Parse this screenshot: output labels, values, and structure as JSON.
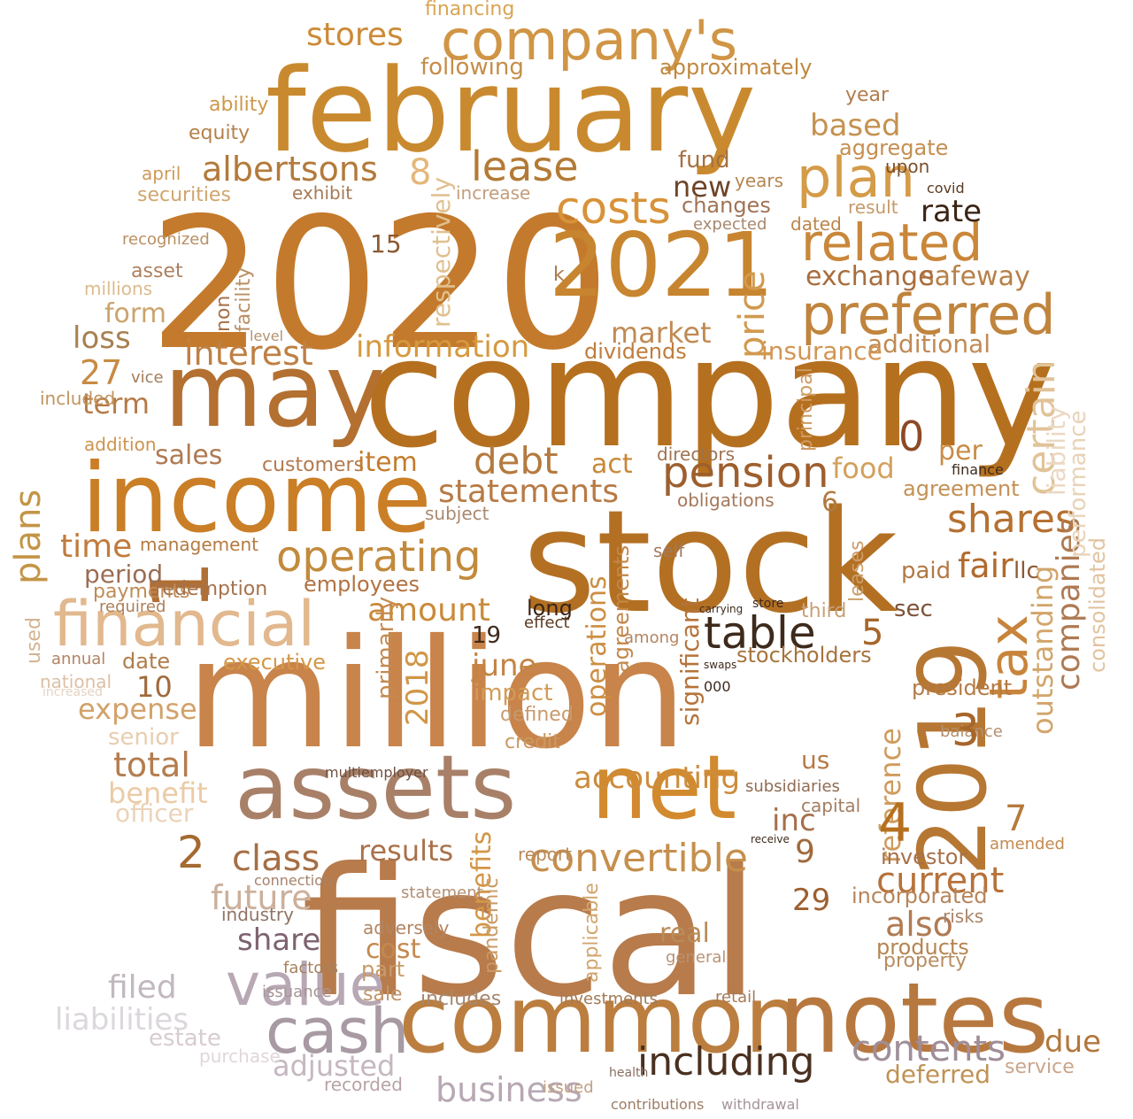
{
  "words": [
    {
      "t": "2020",
      "c": "#c47a2c"
    },
    {
      "t": "company",
      "c": "#b5701f"
    },
    {
      "t": "million",
      "c": "#c8844a"
    },
    {
      "t": "fiscal",
      "c": "#b87b4b"
    },
    {
      "t": "stock",
      "c": "#b37023"
    },
    {
      "t": "february",
      "c": "#c98a2f"
    },
    {
      "t": "income",
      "c": "#ca7e26"
    },
    {
      "t": "may",
      "c": "#b37030"
    },
    {
      "t": "common",
      "c": "#bb7e3f"
    },
    {
      "t": "notes",
      "c": "#b7783f"
    },
    {
      "t": "assets",
      "c": "#a88068"
    },
    {
      "t": "net",
      "c": "#d28a2e"
    },
    {
      "t": "2019",
      "c": "#b67733"
    },
    {
      "t": "2021",
      "c": "#c7852f"
    },
    {
      "t": "1",
      "c": "#b06f35"
    },
    {
      "t": "company's",
      "c": "#d09545"
    },
    {
      "t": "financial",
      "c": "#e2b88e"
    },
    {
      "t": "cash",
      "c": "#a89aa3"
    },
    {
      "t": "value",
      "c": "#b7a8b4"
    },
    {
      "t": "preferred",
      "c": "#c0843d"
    },
    {
      "t": "related",
      "c": "#c9873a"
    },
    {
      "t": "plan",
      "c": "#d49b48"
    },
    {
      "t": "operating",
      "c": "#c28a3c"
    },
    {
      "t": "table",
      "c": "#3e2a1c"
    },
    {
      "t": "pension",
      "c": "#9e5f2e"
    },
    {
      "t": "costs",
      "c": "#d89238"
    },
    {
      "t": "lease",
      "c": "#b37a36"
    },
    {
      "t": "albertsons",
      "c": "#b37a3b"
    },
    {
      "t": "stores",
      "c": "#cc8a36"
    },
    {
      "t": "tax",
      "c": "#c8843b"
    },
    {
      "t": "including",
      "c": "#4a3020"
    },
    {
      "t": "contents",
      "c": "#9f8e98"
    },
    {
      "t": "convertible",
      "c": "#c58f4d"
    },
    {
      "t": "shares",
      "c": "#b57131"
    },
    {
      "t": "debt",
      "c": "#b47a3e"
    },
    {
      "t": "statements",
      "c": "#b87a44"
    },
    {
      "t": "interest",
      "c": "#be8043"
    },
    {
      "t": "information",
      "c": "#d5993f"
    },
    {
      "t": "class",
      "c": "#a56f45"
    },
    {
      "t": "future",
      "c": "#ccb09b"
    },
    {
      "t": "share",
      "c": "#7d6270"
    },
    {
      "t": "filed",
      "c": "#c1b8c0"
    },
    {
      "t": "liabilities",
      "c": "#dcd7dc"
    },
    {
      "t": "business",
      "c": "#b7a8b4"
    },
    {
      "t": "adjusted",
      "c": "#c5b7c0"
    },
    {
      "t": "current",
      "c": "#b6723b"
    },
    {
      "t": "accounting",
      "c": "#cc8c3c"
    },
    {
      "t": "amount",
      "c": "#ca8a39"
    },
    {
      "t": "certain",
      "c": "#e1c398"
    },
    {
      "t": "outstanding",
      "c": "#d2a56a"
    },
    {
      "t": "companies",
      "c": "#ae7a53"
    },
    {
      "t": "reference",
      "c": "#cf9b5c"
    },
    {
      "t": "benefits",
      "c": "#d39646"
    },
    {
      "t": "operations",
      "c": "#cc8e43"
    },
    {
      "t": "2018",
      "c": "#d09648"
    },
    {
      "t": "price",
      "c": "#d19a4f"
    },
    {
      "t": "plans",
      "c": "#c39546"
    },
    {
      "t": "time",
      "c": "#c07b3c"
    },
    {
      "t": "total",
      "c": "#b47d4f"
    },
    {
      "t": "expense",
      "c": "#d2a26a"
    },
    {
      "t": "benefit",
      "c": "#ebcba6"
    },
    {
      "t": "officer",
      "c": "#ebd3b8"
    },
    {
      "t": "senior",
      "c": "#e8cdb0"
    },
    {
      "t": "results",
      "c": "#a9714a"
    },
    {
      "t": "also",
      "c": "#b07a52"
    },
    {
      "t": "inc",
      "c": "#a66f4b"
    },
    {
      "t": "fair",
      "c": "#b16a2c"
    },
    {
      "t": "due",
      "c": "#b2773c"
    },
    {
      "t": "deferred",
      "c": "#c09255"
    },
    {
      "t": "service",
      "c": "#caa58a"
    },
    {
      "t": "market",
      "c": "#c08a53"
    },
    {
      "t": "loss",
      "c": "#a78151"
    },
    {
      "t": "form",
      "c": "#caa46d"
    },
    {
      "t": "sales",
      "c": "#af7a52"
    },
    {
      "t": "term",
      "c": "#b47a45"
    },
    {
      "t": "period",
      "c": "#9a6d54"
    },
    {
      "t": "new",
      "c": "#6e4428"
    },
    {
      "t": "rate",
      "c": "#3b2415"
    },
    {
      "t": "safeway",
      "c": "#b78048"
    },
    {
      "t": "exchange",
      "c": "#a96d3d"
    },
    {
      "t": "additional",
      "c": "#c08a55"
    },
    {
      "t": "insurance",
      "c": "#d29553"
    },
    {
      "t": "dividends",
      "c": "#c07c3c"
    },
    {
      "t": "per",
      "c": "#c98c46"
    },
    {
      "t": "act",
      "c": "#c88837"
    },
    {
      "t": "food",
      "c": "#d3a05c"
    },
    {
      "t": "agreement",
      "c": "#c49155"
    },
    {
      "t": "paid",
      "c": "#b07a44"
    },
    {
      "t": "llc",
      "c": "#8c5a32"
    },
    {
      "t": "sec",
      "c": "#7d5236"
    },
    {
      "t": "long",
      "c": "#3a2416"
    },
    {
      "t": "june",
      "c": "#c38543"
    },
    {
      "t": "impact",
      "c": "#d29b56"
    },
    {
      "t": "defined",
      "c": "#c79a6c"
    },
    {
      "t": "credit",
      "c": "#ca9962"
    },
    {
      "t": "stockholders",
      "c": "#a7733d"
    },
    {
      "t": "president",
      "c": "#b47a44"
    },
    {
      "t": "balance",
      "c": "#b3906f"
    },
    {
      "t": "consolidated",
      "c": "#e2c3a0"
    },
    {
      "t": "performance",
      "c": "#e9d3b8"
    },
    {
      "t": "liability",
      "c": "#ebd8c3"
    },
    {
      "t": "significant",
      "c": "#b6733a"
    },
    {
      "t": "agreements",
      "c": "#c38646"
    },
    {
      "t": "primarily",
      "c": "#c48a4f"
    },
    {
      "t": "executive",
      "c": "#d49847"
    },
    {
      "t": "date",
      "c": "#b17c4b"
    },
    {
      "t": "annual",
      "c": "#b18263"
    },
    {
      "t": "national",
      "c": "#dcc0a6"
    },
    {
      "t": "increased",
      "c": "#e5d3c3"
    },
    {
      "t": "used",
      "c": "#d3b392"
    },
    {
      "t": "payments",
      "c": "#c08b55"
    },
    {
      "t": "required",
      "c": "#ad7f5a"
    },
    {
      "t": "redemption",
      "c": "#a6724b"
    },
    {
      "t": "management",
      "c": "#b47a40"
    },
    {
      "t": "employees",
      "c": "#b27242"
    },
    {
      "t": "customers",
      "c": "#b37a4e"
    },
    {
      "t": "item",
      "c": "#c47b2c"
    },
    {
      "t": "addition",
      "c": "#cc944e"
    },
    {
      "t": "included",
      "c": "#c1945f"
    },
    {
      "t": "vice",
      "c": "#a47c5a"
    },
    {
      "t": "asset",
      "c": "#ad8060"
    },
    {
      "t": "millions",
      "c": "#dcbb8d"
    },
    {
      "t": "recognized",
      "c": "#b98f62"
    },
    {
      "t": "securities",
      "c": "#cfa66d"
    },
    {
      "t": "april",
      "c": "#cf9a5a"
    },
    {
      "t": "equity",
      "c": "#b58149"
    },
    {
      "t": "ability",
      "c": "#cd9849"
    },
    {
      "t": "based",
      "c": "#c4924f"
    },
    {
      "t": "aggregate",
      "c": "#c58e50"
    },
    {
      "t": "year",
      "c": "#b17d4f"
    },
    {
      "t": "upon",
      "c": "#7b4f2a"
    },
    {
      "t": "approximately",
      "c": "#c1883f"
    },
    {
      "t": "following",
      "c": "#c58d49"
    },
    {
      "t": "financing",
      "c": "#d9a453"
    },
    {
      "t": "fund",
      "c": "#a6703f"
    },
    {
      "t": "changes",
      "c": "#9f7456"
    },
    {
      "t": "increase",
      "c": "#c29e7a"
    },
    {
      "t": "exhibit",
      "c": "#a67a55"
    },
    {
      "t": "years",
      "c": "#b58550"
    },
    {
      "t": "dated",
      "c": "#bd844a"
    },
    {
      "t": "result",
      "c": "#c59a68"
    },
    {
      "t": "expected",
      "c": "#a8886e"
    },
    {
      "t": "facility",
      "c": "#b98e62"
    },
    {
      "t": "non",
      "c": "#a7714a"
    },
    {
      "t": "level",
      "c": "#b29272"
    },
    {
      "t": "respectively",
      "c": "#e0c08f"
    },
    {
      "t": "principal",
      "c": "#cf9b63"
    },
    {
      "t": "directors",
      "c": "#9e7352"
    },
    {
      "t": "obligations",
      "c": "#a4785a"
    },
    {
      "t": "leases",
      "c": "#cb9e68"
    },
    {
      "t": "self",
      "c": "#a07a62"
    },
    {
      "t": "third",
      "c": "#c6a078"
    },
    {
      "t": "among",
      "c": "#b38562"
    },
    {
      "t": "subject",
      "c": "#a8896f"
    },
    {
      "t": "effect",
      "c": "#5a3a22"
    },
    {
      "t": "8",
      "c": "#e4b77a"
    },
    {
      "t": "15",
      "c": "#8c5a32"
    },
    {
      "t": "27",
      "c": "#c78b44"
    },
    {
      "t": "10",
      "c": "#a06a3c"
    },
    {
      "t": "19",
      "c": "#3e2a1c"
    },
    {
      "t": "0",
      "c": "#8c4a24"
    },
    {
      "t": "3",
      "c": "#a6662a"
    },
    {
      "t": "4",
      "c": "#b5701f"
    },
    {
      "t": "5",
      "c": "#a6662a"
    },
    {
      "t": "6",
      "c": "#b17a3f"
    },
    {
      "t": "7",
      "c": "#b57a3b"
    },
    {
      "t": "9",
      "c": "#a06a3c"
    },
    {
      "t": "2",
      "c": "#a46a32"
    },
    {
      "t": "29",
      "c": "#9e5f2e"
    },
    {
      "t": "k",
      "c": "#a87a4f"
    },
    {
      "t": "us",
      "c": "#b57a46"
    },
    {
      "t": "cost",
      "c": "#c3894f"
    },
    {
      "t": "part",
      "c": "#c89a6a"
    },
    {
      "t": "sale",
      "c": "#c1966c"
    },
    {
      "t": "includes",
      "c": "#a6876e"
    },
    {
      "t": "investments",
      "c": "#a27a55"
    },
    {
      "t": "retail",
      "c": "#a47a59"
    },
    {
      "t": "products",
      "c": "#b58550"
    },
    {
      "t": "property",
      "c": "#b78b5f"
    },
    {
      "t": "real",
      "c": "#b98c58"
    },
    {
      "t": "general",
      "c": "#b99173"
    },
    {
      "t": "incorporated",
      "c": "#b6845a"
    },
    {
      "t": "risks",
      "c": "#a88468"
    },
    {
      "t": "investor",
      "c": "#a7714a"
    },
    {
      "t": "amended",
      "c": "#c48a4f"
    },
    {
      "t": "industry",
      "c": "#8f7465"
    },
    {
      "t": "connection",
      "c": "#a5826b"
    },
    {
      "t": "statement",
      "c": "#b28f74"
    },
    {
      "t": "adversely",
      "c": "#b28462"
    },
    {
      "t": "factors",
      "c": "#a4815f"
    },
    {
      "t": "issuance",
      "c": "#a89596"
    },
    {
      "t": "estate",
      "c": "#d7ccd0"
    },
    {
      "t": "purchase",
      "c": "#e0d6da"
    },
    {
      "t": "recorded",
      "c": "#b7a3a6"
    },
    {
      "t": "issued",
      "c": "#c3a080"
    },
    {
      "t": "contributions",
      "c": "#9e7d66"
    },
    {
      "t": "withdrawal",
      "c": "#a6939b"
    },
    {
      "t": "report",
      "c": "#b88a5c"
    },
    {
      "t": "capital",
      "c": "#a27d61"
    },
    {
      "t": "subsidiaries",
      "c": "#916b52"
    },
    {
      "t": "multiemployer",
      "c": "#6e5040"
    },
    {
      "t": "pandemic",
      "c": "#c99a63"
    },
    {
      "t": "applicable",
      "c": "#d2a56e"
    },
    {
      "t": "health",
      "c": "#8a6e62"
    },
    {
      "t": "covid",
      "c": "#5a3a22"
    },
    {
      "t": "finance",
      "c": "#3e2a1c"
    },
    {
      "t": "000",
      "c": "#3e2a1c"
    },
    {
      "t": "store",
      "c": "#3e2a1c"
    },
    {
      "t": "receive",
      "c": "#3e2a1c"
    },
    {
      "t": "swaps",
      "c": "#3e2a1c"
    },
    {
      "t": "carrying",
      "c": "#3e2a1c"
    }
  ]
}
